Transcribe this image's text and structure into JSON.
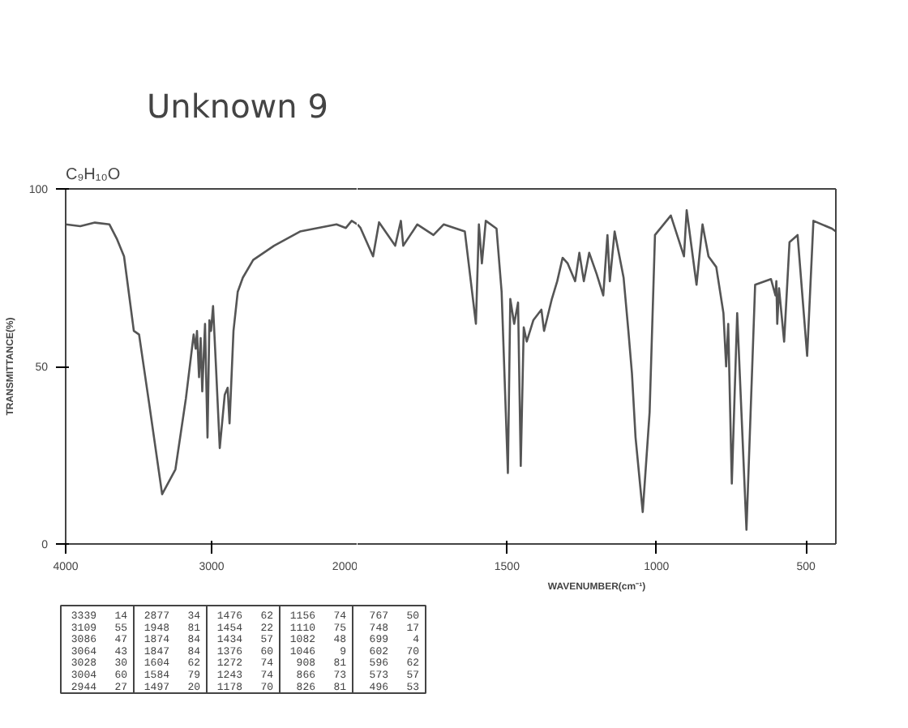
{
  "chart_data": [
    {
      "type": "line",
      "title": "Unknown 9",
      "subtitle": "C₉H₁₀O",
      "ylabel": "TRANSMITTANCE(%)",
      "x": [
        4000,
        3900,
        3800,
        3700,
        3650,
        3600,
        3533,
        3497,
        3426,
        3339,
        3248,
        3176,
        3123,
        3109,
        3100,
        3086,
        3075,
        3064,
        3045,
        3028,
        3015,
        3004,
        2990,
        2970,
        2944,
        2910,
        2890,
        2877,
        2850,
        2821,
        2786,
        2715,
        2572,
        2394,
        2144,
        2080,
        2040,
        2000
      ],
      "series": [
        {
          "color": "#555555",
          "values": [
            90,
            89.5,
            90.5,
            90,
            86,
            81,
            60,
            59,
            39,
            14,
            21,
            41,
            59,
            55,
            60,
            47,
            58,
            43,
            62,
            30,
            63,
            60,
            67,
            50,
            27,
            42,
            44,
            34,
            60,
            71,
            75,
            80,
            84,
            88,
            90,
            89,
            91,
            90
          ]
        }
      ],
      "xlim": [
        4000,
        2000
      ],
      "xticks": [
        4000,
        3000,
        2000
      ],
      "ylim": [
        0,
        100
      ],
      "yticks": [
        0,
        50,
        100
      ],
      "grid": false,
      "marker": "none",
      "line_style": "solid",
      "annotations": [
        "3339 14",
        "3109 55",
        "3086 47",
        "3064 43",
        "3028 30",
        "3004 60",
        "2944 27",
        "2877 34",
        "1948 81",
        "1874 84",
        "1847 84",
        "1604 62",
        "1584 79",
        "1497 20",
        "1476 62",
        "1454 22",
        "1434 57",
        "1376 60",
        "1272 74",
        "1243 74",
        "1178 70",
        "1156 74",
        "1110 75",
        "1082 48",
        "1046 9",
        "908 81",
        "866 73",
        "826 81",
        "767 50",
        "748 17",
        "699 4",
        "602 70",
        "596 62",
        "573 57",
        "496 53"
      ]
    },
    {
      "type": "line",
      "xlabel": "WAVENUMBER(cm⁻¹)",
      "x": [
        2000,
        1990,
        1948,
        1928,
        1874,
        1855,
        1847,
        1800,
        1746,
        1712,
        1641,
        1604,
        1594,
        1584,
        1571,
        1535,
        1518,
        1497,
        1489,
        1476,
        1463,
        1454,
        1444,
        1434,
        1412,
        1385,
        1376,
        1350,
        1332,
        1314,
        1297,
        1272,
        1258,
        1243,
        1225,
        1200,
        1178,
        1164,
        1156,
        1140,
        1110,
        1094,
        1082,
        1070,
        1046,
        1023,
        1005,
        952,
        908,
        899,
        866,
        846,
        826,
        800,
        776,
        767,
        760,
        748,
        730,
        699,
        670,
        617,
        602,
        599,
        596,
        590,
        573,
        555,
        528,
        496,
        475,
        413,
        400
      ],
      "series": [
        {
          "color": "#555555",
          "values": [
            90,
            89,
            81,
            90.6,
            84,
            91,
            84,
            90,
            87,
            90,
            88,
            62,
            90,
            79,
            91,
            88.8,
            71,
            20,
            69,
            62,
            68,
            22,
            61,
            57,
            63,
            66,
            60,
            69,
            74,
            80.6,
            79,
            74,
            82,
            74,
            82,
            76,
            70,
            87,
            74,
            88,
            75,
            60,
            48,
            30,
            9,
            37,
            87,
            92.5,
            81,
            94,
            73,
            90,
            81,
            78,
            65,
            50,
            62,
            17,
            65,
            4,
            73,
            74.6,
            70,
            74,
            62,
            72,
            57,
            85,
            87,
            53,
            91,
            88.8,
            88
          ]
        }
      ],
      "xlim": [
        2000,
        400
      ],
      "xticks": [
        1500,
        1000,
        500
      ],
      "ylim": [
        0,
        100
      ],
      "tick_labels": "x",
      "grid": false,
      "marker": "none",
      "line_style": "solid"
    }
  ]
}
